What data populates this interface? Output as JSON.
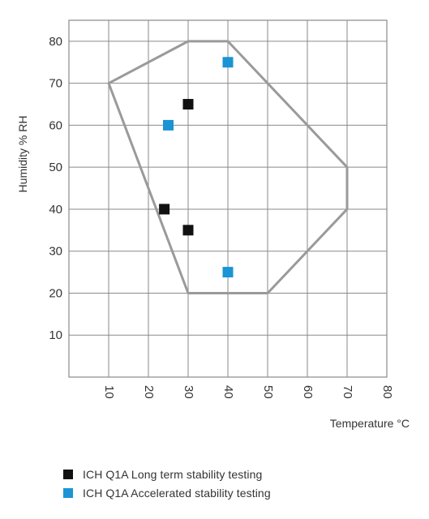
{
  "chart_data": {
    "type": "scatter",
    "ylabel": "Humidity % RH",
    "xlabel": "Temperature °C",
    "xlim": [
      0,
      80
    ],
    "ylim": [
      0,
      85
    ],
    "grid": true,
    "x_ticks": [
      "10",
      "20",
      "30",
      "40",
      "50",
      "60",
      "70",
      "80"
    ],
    "y_ticks": [
      "10",
      "20",
      "30",
      "40",
      "50",
      "60",
      "70",
      "80"
    ],
    "region": [
      [
        10,
        70
      ],
      [
        30,
        80
      ],
      [
        40,
        80
      ],
      [
        70,
        50
      ],
      [
        70,
        40
      ],
      [
        50,
        20
      ],
      [
        30,
        20
      ]
    ],
    "series": [
      {
        "name": "ICH Q1A Long term stability testing",
        "color": "#111111",
        "points": [
          [
            30,
            65
          ],
          [
            24,
            40
          ],
          [
            30,
            35
          ]
        ]
      },
      {
        "name": "ICH Q1A Accelerated stability testing",
        "color": "#1a94d4",
        "points": [
          [
            40,
            75
          ],
          [
            25,
            60
          ],
          [
            40,
            25
          ]
        ]
      }
    ],
    "legend_position": "bottom-left"
  },
  "colors": {
    "grid": "#8a8a8a",
    "region": "#9a9a9a",
    "text": "#333333"
  }
}
